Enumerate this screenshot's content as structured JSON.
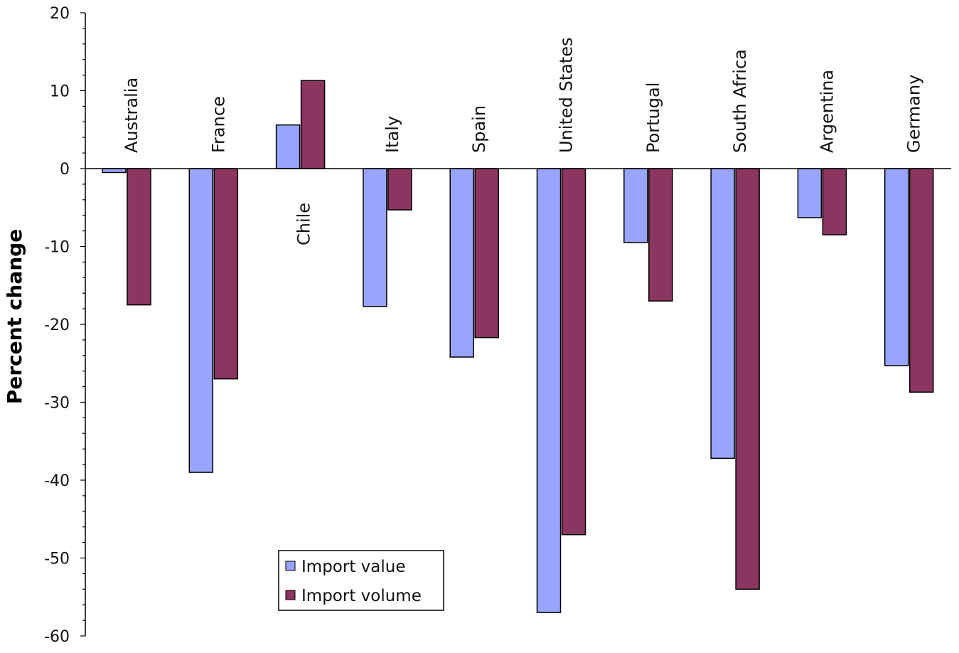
{
  "chart_data": {
    "type": "bar",
    "title": "",
    "xlabel": "",
    "ylabel": "Percent change",
    "ylim": [
      -60,
      20
    ],
    "yticks": [
      20,
      10,
      0,
      -10,
      -20,
      -30,
      -40,
      -50,
      -60
    ],
    "grid": false,
    "legend_position": "bottom-left",
    "categories": [
      "Australia",
      "France",
      "Chile",
      "Italy",
      "Spain",
      "United States",
      "Portugal",
      "South Africa",
      "Argentina",
      "Germany"
    ],
    "series": [
      {
        "name": "Import value",
        "color": "#99a4ff",
        "values": [
          -0.5,
          -39,
          5.6,
          -17.7,
          -24.2,
          -57,
          -9.5,
          -37.2,
          -6.3,
          -25.3
        ]
      },
      {
        "name": "Import volume",
        "color": "#8c3560",
        "values": [
          -17.5,
          -27,
          11.3,
          -5.3,
          -21.7,
          -47,
          -17,
          -54,
          -8.5,
          -28.7
        ]
      }
    ]
  }
}
